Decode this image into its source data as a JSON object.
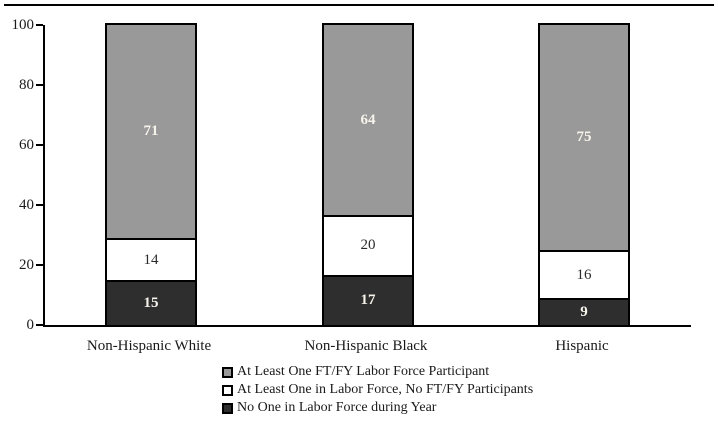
{
  "figure": {
    "background": "#ffffff",
    "frame_rule_color": "#000000"
  },
  "chart_data": {
    "type": "bar",
    "subtype": "stacked-vertical",
    "title": "",
    "xlabel": "",
    "ylabel": "",
    "categories": [
      "Non-Hispanic White",
      "Non-Hispanic Black",
      "Hispanic"
    ],
    "series": [
      {
        "name": "At Least One FT/FY Labor Force Participant",
        "values": [
          71,
          64,
          75
        ],
        "color": "#999999",
        "label_color": "#f6f3ea"
      },
      {
        "name": "At Least One in Labor Force, No FT/FY Participants",
        "values": [
          14,
          20,
          16
        ],
        "color": "#ffffff",
        "label_color": "#2b2b2b"
      },
      {
        "name": "No One in Labor Force during Year",
        "values": [
          15,
          17,
          9
        ],
        "color": "#2e2e2e",
        "label_color": "#f6f3ea"
      }
    ],
    "stack_order": "first-series-on-top",
    "y_axis": {
      "min": 0,
      "max": 100,
      "ticks": [
        0,
        20,
        40,
        60,
        80,
        100
      ]
    },
    "grid": false,
    "legend_position": "bottom-left",
    "bar_border_color": "#000000"
  }
}
